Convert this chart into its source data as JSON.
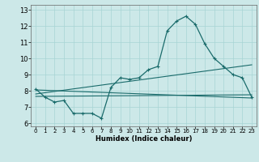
{
  "title": "",
  "xlabel": "Humidex (Indice chaleur)",
  "ylabel": "",
  "xlim": [
    -0.5,
    23.5
  ],
  "ylim": [
    5.8,
    13.3
  ],
  "yticks": [
    6,
    7,
    8,
    9,
    10,
    11,
    12,
    13
  ],
  "xticks": [
    0,
    1,
    2,
    3,
    4,
    5,
    6,
    7,
    8,
    9,
    10,
    11,
    12,
    13,
    14,
    15,
    16,
    17,
    18,
    19,
    20,
    21,
    22,
    23
  ],
  "bg_color": "#cce8e8",
  "grid_color": "#a8d4d4",
  "line_color": "#1a6b6b",
  "series1_x": [
    0,
    1,
    2,
    3,
    4,
    5,
    6,
    7,
    8,
    9,
    10,
    11,
    12,
    13,
    14,
    15,
    16,
    17,
    18,
    19,
    20,
    21,
    22,
    23
  ],
  "series1_y": [
    8.1,
    7.6,
    7.3,
    7.4,
    6.6,
    6.6,
    6.6,
    6.3,
    8.2,
    8.8,
    8.7,
    8.8,
    9.3,
    9.5,
    11.7,
    12.3,
    12.6,
    12.1,
    10.9,
    10.0,
    9.5,
    9.0,
    8.8,
    7.6
  ],
  "series2_x": [
    0,
    23
  ],
  "series2_y": [
    7.8,
    9.6
  ],
  "series3_x": [
    0,
    23
  ],
  "series3_y": [
    7.65,
    7.75
  ],
  "series4_x": [
    0,
    23
  ],
  "series4_y": [
    8.05,
    7.55
  ]
}
